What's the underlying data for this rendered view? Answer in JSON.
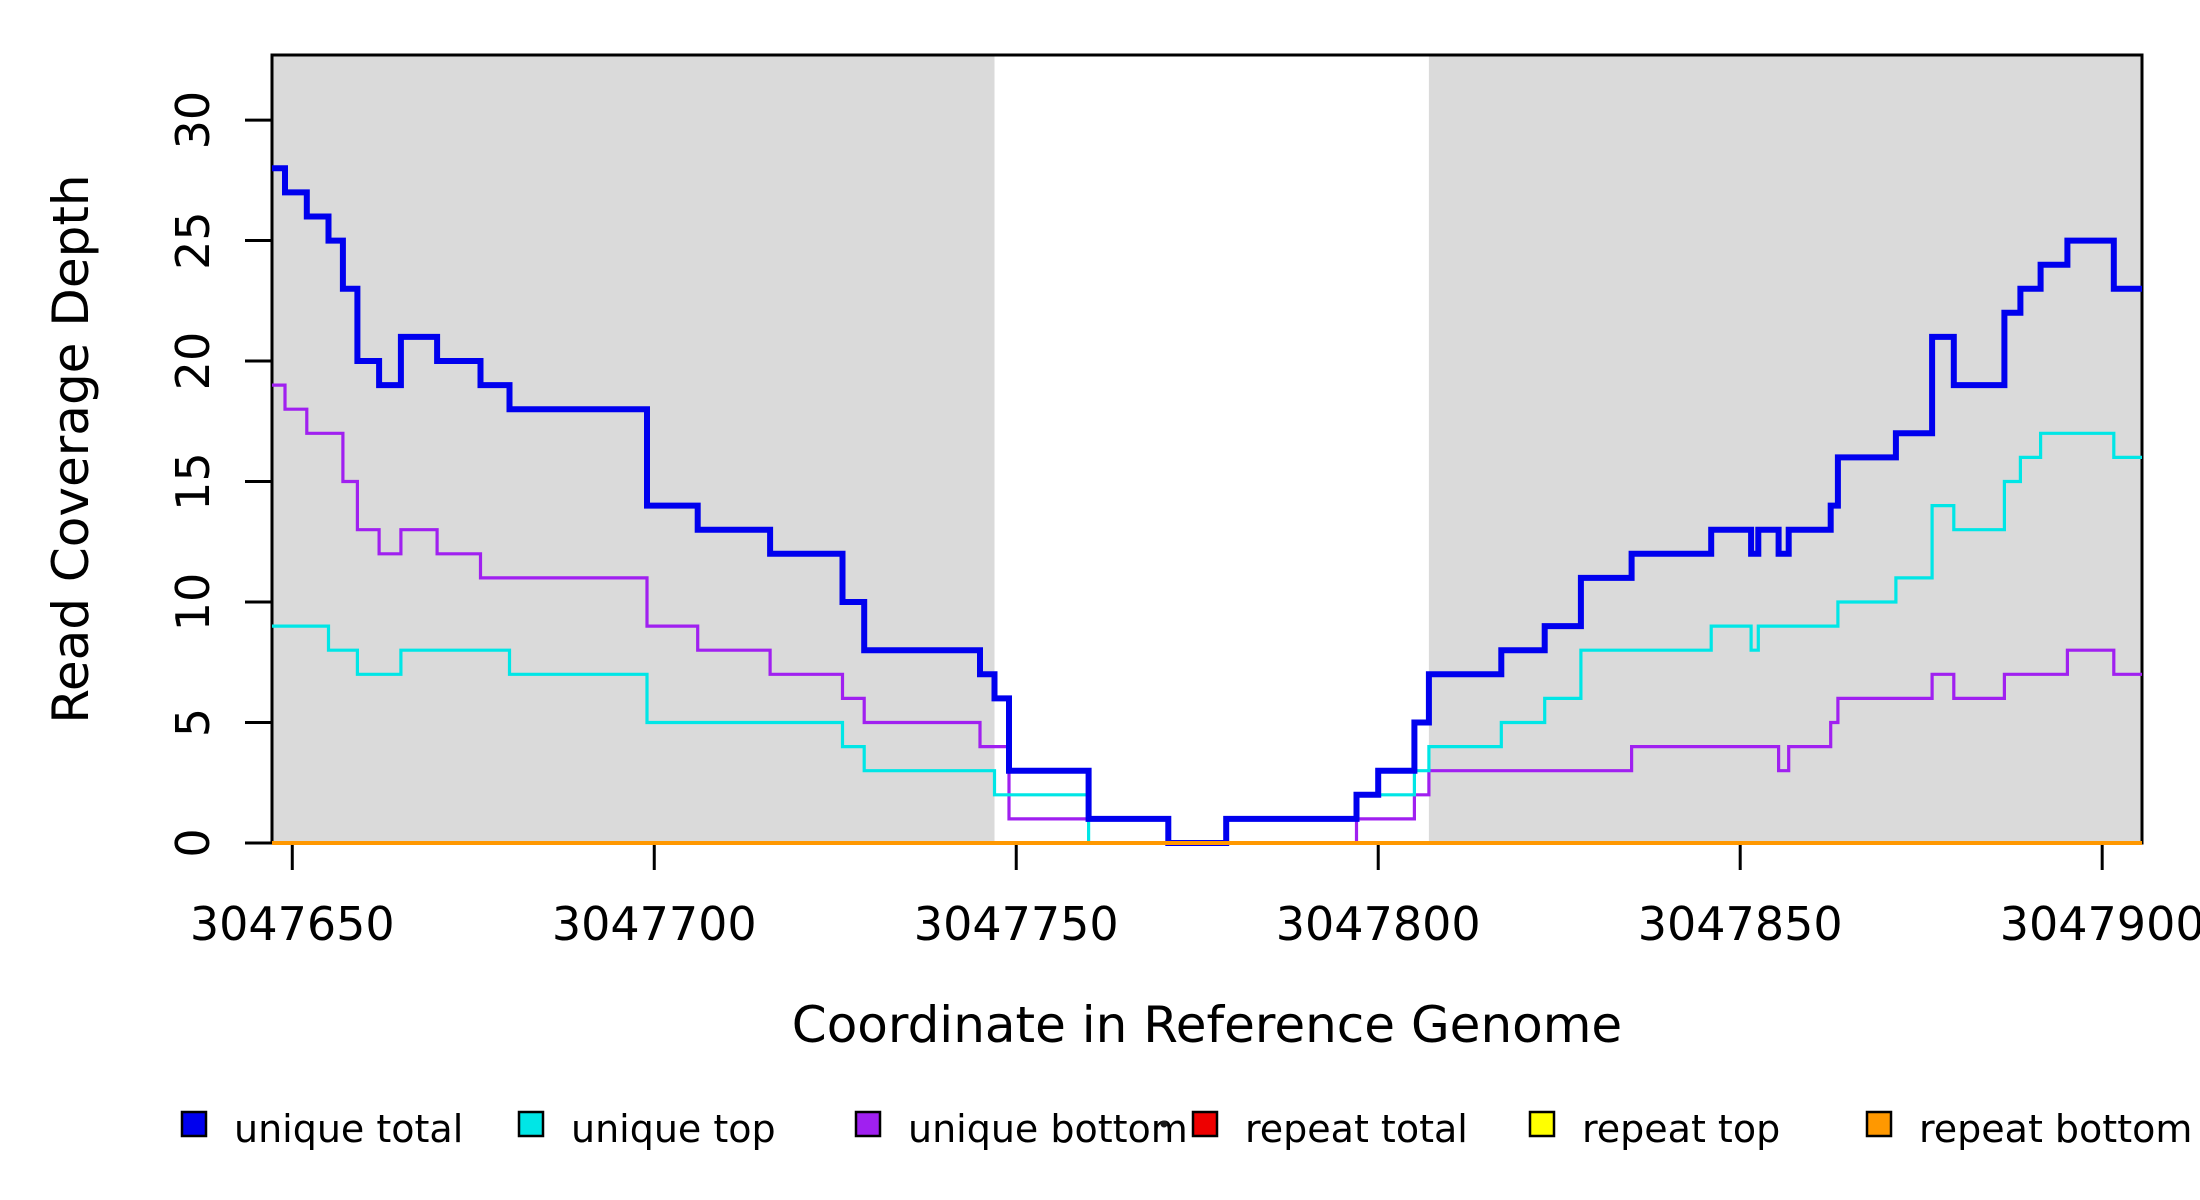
{
  "chart_data": {
    "type": "line",
    "subtype": "step-after",
    "title": "",
    "xlabel": "Coordinate in Reference Genome",
    "ylabel": "Read Coverage Depth",
    "xlim": [
      3047647.2,
      3047905.5
    ],
    "ylim": [
      0,
      32.7
    ],
    "x_ticks": [
      3047650,
      3047700,
      3047750,
      3047800,
      3047850,
      3047900
    ],
    "y_ticks": [
      0,
      5,
      10,
      15,
      20,
      25,
      30
    ],
    "grid": false,
    "plot_background": "#FFFFFF",
    "box_color": "#000000",
    "shaded_regions": [
      {
        "from": 3047647.2,
        "to": 3047747,
        "color": "#DADADA"
      },
      {
        "from": 3047807,
        "to": 3047905.5,
        "color": "#DADADA"
      }
    ],
    "legend_position": "bottom",
    "legend_dot_artifact": true,
    "series": [
      {
        "name": "unique total",
        "color": "#0000EE",
        "line_width": 6,
        "draw_order": 5,
        "steps": [
          [
            3047647.2,
            28
          ],
          [
            3047649,
            27
          ],
          [
            3047652,
            26
          ],
          [
            3047655,
            25
          ],
          [
            3047657,
            23
          ],
          [
            3047659,
            20
          ],
          [
            3047662,
            19
          ],
          [
            3047665,
            21
          ],
          [
            3047670,
            20
          ],
          [
            3047676,
            19
          ],
          [
            3047680,
            18
          ],
          [
            3047699,
            14
          ],
          [
            3047706,
            13
          ],
          [
            3047716,
            12
          ],
          [
            3047726,
            10
          ],
          [
            3047729,
            8
          ],
          [
            3047745,
            7
          ],
          [
            3047747,
            6
          ],
          [
            3047749,
            3
          ],
          [
            3047760,
            1
          ],
          [
            3047771,
            0
          ],
          [
            3047779,
            1
          ],
          [
            3047797,
            2
          ],
          [
            3047800,
            3
          ],
          [
            3047805,
            5
          ],
          [
            3047807,
            7
          ],
          [
            3047817,
            8
          ],
          [
            3047823,
            9
          ],
          [
            3047828,
            11
          ],
          [
            3047835,
            12
          ],
          [
            3047846,
            13
          ],
          [
            3047851.5,
            12
          ],
          [
            3047852.5,
            13
          ],
          [
            3047855.3,
            12
          ],
          [
            3047856.7,
            13
          ],
          [
            3047862.5,
            14
          ],
          [
            3047863.5,
            16
          ],
          [
            3047871.5,
            17
          ],
          [
            3047876.5,
            21
          ],
          [
            3047879.5,
            19
          ],
          [
            3047886.5,
            22
          ],
          [
            3047888.7,
            23
          ],
          [
            3047891.5,
            24
          ],
          [
            3047895.2,
            25
          ],
          [
            3047901.6,
            23
          ]
        ]
      },
      {
        "name": "unique top",
        "color": "#00E6E6",
        "line_width": 3.2,
        "draw_order": 4,
        "steps": [
          [
            3047647.2,
            9
          ],
          [
            3047655,
            8
          ],
          [
            3047659,
            7
          ],
          [
            3047665,
            8
          ],
          [
            3047680,
            7
          ],
          [
            3047699,
            5
          ],
          [
            3047726,
            4
          ],
          [
            3047729,
            3
          ],
          [
            3047747,
            2
          ],
          [
            3047760,
            0
          ],
          [
            3047779,
            1
          ],
          [
            3047797,
            2
          ],
          [
            3047805,
            3
          ],
          [
            3047807,
            4
          ],
          [
            3047817,
            5
          ],
          [
            3047823,
            6
          ],
          [
            3047828,
            8
          ],
          [
            3047846,
            9
          ],
          [
            3047851.5,
            8
          ],
          [
            3047852.5,
            9
          ],
          [
            3047863.5,
            10
          ],
          [
            3047871.5,
            11
          ],
          [
            3047876.5,
            14
          ],
          [
            3047879.5,
            13
          ],
          [
            3047886.5,
            15
          ],
          [
            3047888.7,
            16
          ],
          [
            3047891.5,
            17
          ],
          [
            3047901.6,
            16
          ]
        ]
      },
      {
        "name": "unique bottom",
        "color": "#A020F0",
        "line_width": 3.2,
        "draw_order": 3,
        "steps": [
          [
            3047647.2,
            19
          ],
          [
            3047649,
            18
          ],
          [
            3047652,
            17
          ],
          [
            3047657,
            15
          ],
          [
            3047659,
            13
          ],
          [
            3047662,
            12
          ],
          [
            3047665,
            13
          ],
          [
            3047670,
            12
          ],
          [
            3047676,
            11
          ],
          [
            3047699,
            9
          ],
          [
            3047706,
            8
          ],
          [
            3047716,
            7
          ],
          [
            3047726,
            6
          ],
          [
            3047729,
            5
          ],
          [
            3047745,
            4
          ],
          [
            3047749,
            1
          ],
          [
            3047771,
            0
          ],
          [
            3047797,
            1
          ],
          [
            3047805,
            2
          ],
          [
            3047807,
            3
          ],
          [
            3047835,
            4
          ],
          [
            3047855.3,
            3
          ],
          [
            3047856.7,
            4
          ],
          [
            3047862.5,
            5
          ],
          [
            3047863.5,
            6
          ],
          [
            3047876.5,
            7
          ],
          [
            3047879.5,
            6
          ],
          [
            3047886.5,
            7
          ],
          [
            3047895.2,
            8
          ],
          [
            3047901.6,
            7
          ]
        ]
      },
      {
        "name": "repeat total",
        "color": "#EE0000",
        "line_width": 3.2,
        "draw_order": 1,
        "steps": [
          [
            3047647.2,
            0
          ]
        ]
      },
      {
        "name": "repeat top",
        "color": "#FFFF00",
        "line_width": 3.2,
        "draw_order": 2,
        "steps": [
          [
            3047647.2,
            0
          ]
        ]
      },
      {
        "name": "repeat bottom",
        "color": "#FF9800",
        "line_width": 4,
        "draw_order": 6,
        "steps": [
          [
            3047647.2,
            0
          ]
        ]
      }
    ]
  }
}
